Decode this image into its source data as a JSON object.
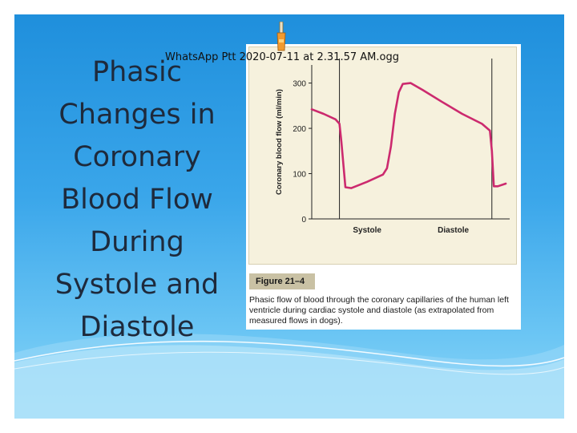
{
  "slide": {
    "title": "Phasic Changes in Coronary Blood Flow During Systole and Diastole",
    "attachment_label": "WhatsApp Ptt 2020-07-11 at 2.31.57 AM.ogg",
    "attachment_icon": "audio-file-icon",
    "colors": {
      "background_top": "#1f8fdc",
      "background_bottom": "#8fd6f8",
      "curve": "#cc2a6e"
    }
  },
  "figure": {
    "label": "Figure 21–4",
    "caption": "Phasic flow of blood through the coronary capillaries of the human left ventricle during cardiac systole and diastole (as extrapolated from measured flows in dogs)."
  },
  "chart_data": {
    "type": "line",
    "ylabel": "Coronary blood flow (ml/min)",
    "xlabel": "",
    "yticks": [
      0,
      100,
      200,
      300
    ],
    "ylim": [
      0,
      340
    ],
    "xlim": [
      0,
      1
    ],
    "grid": false,
    "phase_labels": [
      "Systole",
      "Diastole"
    ],
    "phase_boundaries": [
      0.14,
      0.91
    ],
    "series": [
      {
        "name": "",
        "color": "#cc2a6e",
        "x": [
          0.0,
          0.06,
          0.12,
          0.14,
          0.15,
          0.17,
          0.2,
          0.28,
          0.36,
          0.38,
          0.4,
          0.42,
          0.44,
          0.46,
          0.5,
          0.56,
          0.66,
          0.76,
          0.86,
          0.9,
          0.91,
          0.92,
          0.94,
          0.98
        ],
        "y": [
          242,
          232,
          220,
          210,
          170,
          70,
          68,
          82,
          98,
          112,
          160,
          232,
          280,
          298,
          300,
          285,
          258,
          232,
          210,
          195,
          150,
          72,
          72,
          78
        ]
      }
    ]
  }
}
